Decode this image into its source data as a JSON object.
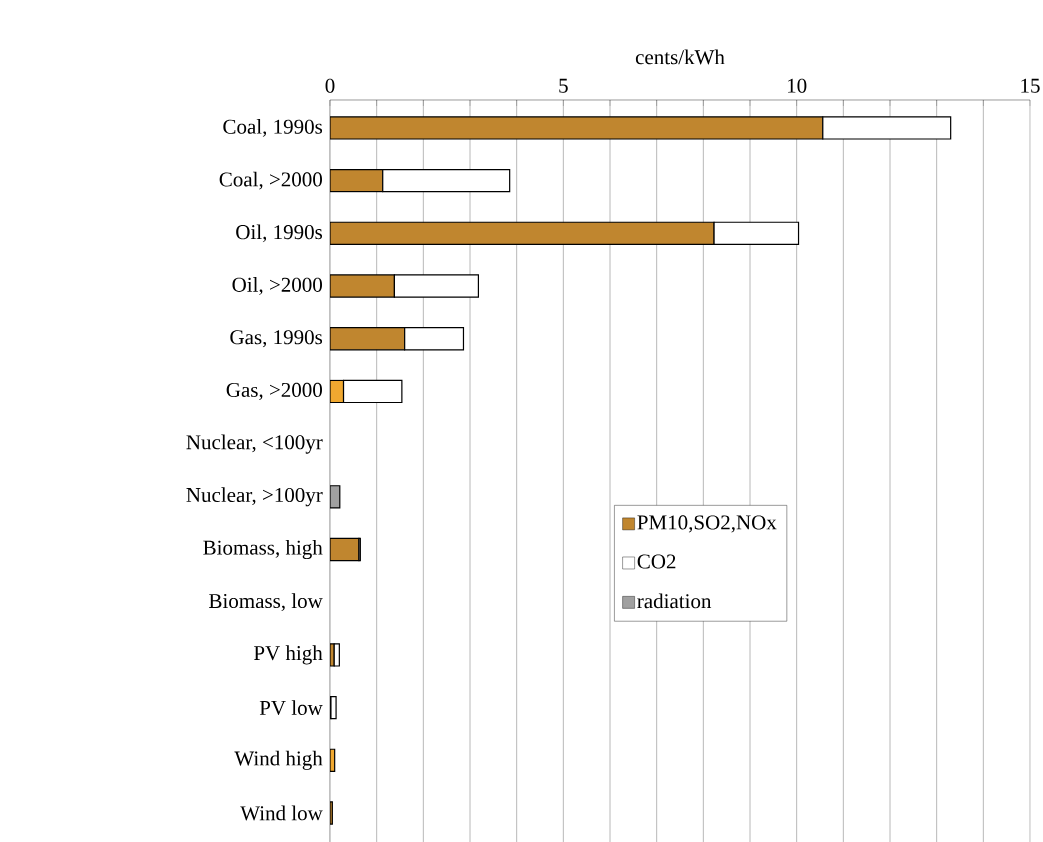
{
  "chart_data": {
    "type": "bar",
    "orientation": "horizontal",
    "stacked": true,
    "xlabel": "cents/kWh",
    "categories": [
      "Coal, 1990s",
      "Coal, >2000",
      "Oil, 1990s",
      "Oil, >2000",
      "Gas, 1990s",
      "Gas, >2000",
      "Nuclear, <100yr",
      "Nuclear, >100yr",
      "Biomass, high",
      "Biomass, low",
      "PV high",
      "PV low",
      "Wind high",
      "Wind low"
    ],
    "series": [
      {
        "name": "PM10,SO2,NOx",
        "color": "#c0862f",
        "colors": [
          "#c0862f",
          "#c0862f",
          "#c0862f",
          "#c0862f",
          "#c0862f",
          "#f0a830",
          "#c0862f",
          "#c0862f",
          "#c0862f",
          "#c0862f",
          "#c0862f",
          "#c0862f",
          "#f0a830",
          "#c0862f"
        ],
        "values": [
          10.56,
          1.13,
          8.23,
          1.38,
          1.6,
          0.29,
          null,
          null,
          0.62,
          null,
          0.09,
          0.02,
          0.1,
          0.05
        ]
      },
      {
        "name": "CO2",
        "color": "#ffffff",
        "values": [
          2.74,
          2.72,
          1.81,
          1.8,
          1.26,
          1.25,
          null,
          null,
          0.03,
          null,
          0.11,
          0.11,
          null,
          null
        ]
      },
      {
        "name": "radiation",
        "color": "#a0a0a0",
        "values": [
          null,
          null,
          null,
          null,
          null,
          null,
          null,
          0.21,
          null,
          null,
          null,
          null,
          null,
          null
        ]
      }
    ],
    "xlim": [
      0,
      15
    ],
    "xticks": [
      0,
      {
        "value": 1,
        "label": null
      },
      {
        "value": 2,
        "label": null
      },
      {
        "value": 3,
        "label": null
      },
      {
        "value": 4,
        "label": null
      },
      5,
      {
        "value": 6,
        "label": null
      },
      {
        "value": 7,
        "label": null
      },
      {
        "value": 8,
        "label": null
      },
      {
        "value": 9,
        "label": null
      },
      10,
      {
        "value": 11,
        "label": null
      },
      {
        "value": 12,
        "label": null
      },
      {
        "value": 13,
        "label": null
      },
      {
        "value": 14,
        "label": null
      },
      15
    ],
    "grid": "x",
    "legend": "right"
  }
}
